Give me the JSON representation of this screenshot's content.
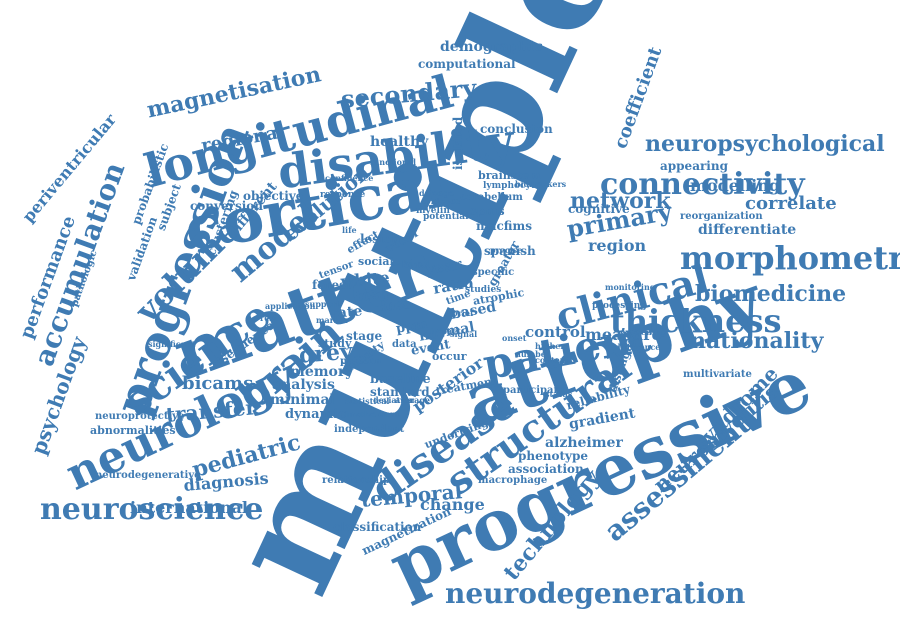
{
  "colors": {
    "word": "#3f7bb3",
    "background": "#ffffff"
  },
  "words": [
    "multiple",
    "progressive",
    "atrophy",
    "cortical",
    "matter",
    "longitudinal",
    "disability",
    "progression",
    "neurology",
    "science",
    "brain",
    "patient",
    "disease",
    "structural",
    "clinical",
    "thickness",
    "morphometry",
    "connectivity",
    "neuropsychological",
    "neuroscience",
    "neurodegeneration",
    "assessment",
    "accumulation",
    "volume",
    "model",
    "primary",
    "network",
    "secondary",
    "magnetisation",
    "nationality",
    "biomedicine",
    "technology",
    "neuromyelitis",
    "syndrome",
    "psychology",
    "performance",
    "periventricular",
    "pediatric",
    "transfer",
    "bicams",
    "temporal",
    "change",
    "international",
    "diagnosis",
    "coefficient",
    "demographic",
    "computational",
    "regional",
    "healthy",
    "region",
    "correlate",
    "modelling",
    "differentiate",
    "measure",
    "control",
    "posterior",
    "gradient",
    "alzheimer",
    "phenotype",
    "association",
    "macrophage",
    "relationship",
    "classification",
    "magnetization",
    "grey",
    "memory",
    "analysis",
    "minimal",
    "dynamic",
    "white",
    "forest",
    "test",
    "loss",
    "rate",
    "ratio",
    "year",
    "normal",
    "event",
    "ppm",
    "based",
    "evolution",
    "different",
    "probabilistic",
    "subject",
    "validation",
    "clustering",
    "pathologic",
    "conversion",
    "objective",
    "lesion",
    "spms",
    "macfims",
    "brainstem",
    "lymphocyte",
    "cerebellum",
    "spanish",
    "cognitive",
    "conclusion",
    "isolated",
    "atrophic",
    "baseline",
    "standard",
    "stage",
    "study",
    "treatment",
    "participant",
    "reliability",
    "distinguish",
    "multivariate",
    "appearing",
    "reorganization",
    "sequence",
    "neuroprotective",
    "abnormalities",
    "neurodegenerative",
    "independent",
    "underlying",
    "occur",
    "pattern",
    "validity",
    "data",
    "greater",
    "time",
    "voxel",
    "social",
    "effect",
    "tensor",
    "band",
    "studies",
    "specific",
    "myelin",
    "damage",
    "evidence",
    "potential",
    "response",
    "confidence",
    "functional",
    "biomarkers",
    "monitoring",
    "processing",
    "involvement",
    "statistical",
    "deviation",
    "average",
    "worsening",
    "difference",
    "higher",
    "number",
    "marker",
    "support",
    "application",
    "significant",
    "rest",
    "life",
    "brief",
    "impact",
    "onset",
    "precise",
    "content",
    "status",
    "signal"
  ]
}
